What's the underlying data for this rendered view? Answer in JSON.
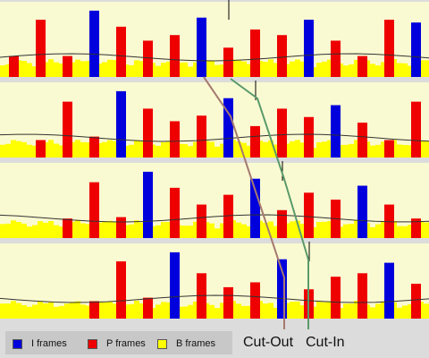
{
  "legend": {
    "i_frames": "I frames",
    "p_frames": "P frames",
    "b_frames": "B frames"
  },
  "labels": {
    "cut_out": "Cut-Out",
    "cut_in": "Cut-In"
  },
  "colors": {
    "i_frame": "#0000dd",
    "p_frame": "#ee0000",
    "b_frame": "#ffff00",
    "panel_bg": "#fafad2",
    "cut_out_line": "#a57a70",
    "cut_in_line": "#5a9a6a",
    "bitrate_line": "#333333"
  },
  "gop_pattern": [
    "P",
    "B",
    "B",
    "P",
    "B",
    "B",
    "I",
    "B",
    "B",
    "P",
    "B",
    "B",
    "P",
    "B",
    "B",
    "P",
    "B",
    "B",
    "I",
    "B",
    "B",
    "P",
    "B",
    "B",
    "P",
    "B",
    "B",
    "P",
    "B",
    "B",
    "I",
    "B",
    "B",
    "P",
    "B",
    "B",
    "P",
    "B",
    "B",
    "P",
    "B",
    "B",
    "I"
  ],
  "streams": [
    {
      "i_shift": 0,
      "p_shift": 0,
      "i_heights": [
        0.95,
        0.85,
        0.82,
        0.78
      ],
      "p_heights": [
        0.3,
        0.82,
        0.3,
        0.72,
        0.52,
        0.6,
        0.42,
        0.68,
        0.6,
        0.52
      ]
    },
    {
      "i_shift": 1,
      "p_shift": 0,
      "i_heights": [
        0.95,
        0.85,
        0.75,
        0.75
      ],
      "p_heights": [
        0.25,
        0.8,
        0.3,
        0.7,
        0.52,
        0.6,
        0.45,
        0.7,
        0.58,
        0.5
      ]
    },
    {
      "i_shift": 2,
      "p_shift": 0,
      "i_heights": [
        0.95,
        0.85,
        0.75,
        0.75
      ],
      "p_heights": [
        0.28,
        0.8,
        0.3,
        0.72,
        0.48,
        0.62,
        0.4,
        0.65,
        0.55,
        0.48
      ]
    },
    {
      "i_shift": 3,
      "p_shift": 0,
      "i_heights": [
        0.95,
        0.85,
        0.8,
        0.7
      ],
      "p_heights": [
        0.25,
        0.82,
        0.3,
        0.65,
        0.45,
        0.52,
        0.42,
        0.6,
        0.65,
        0.5
      ]
    }
  ],
  "cut_out_frame": 3,
  "cut_in_frame": 4
}
